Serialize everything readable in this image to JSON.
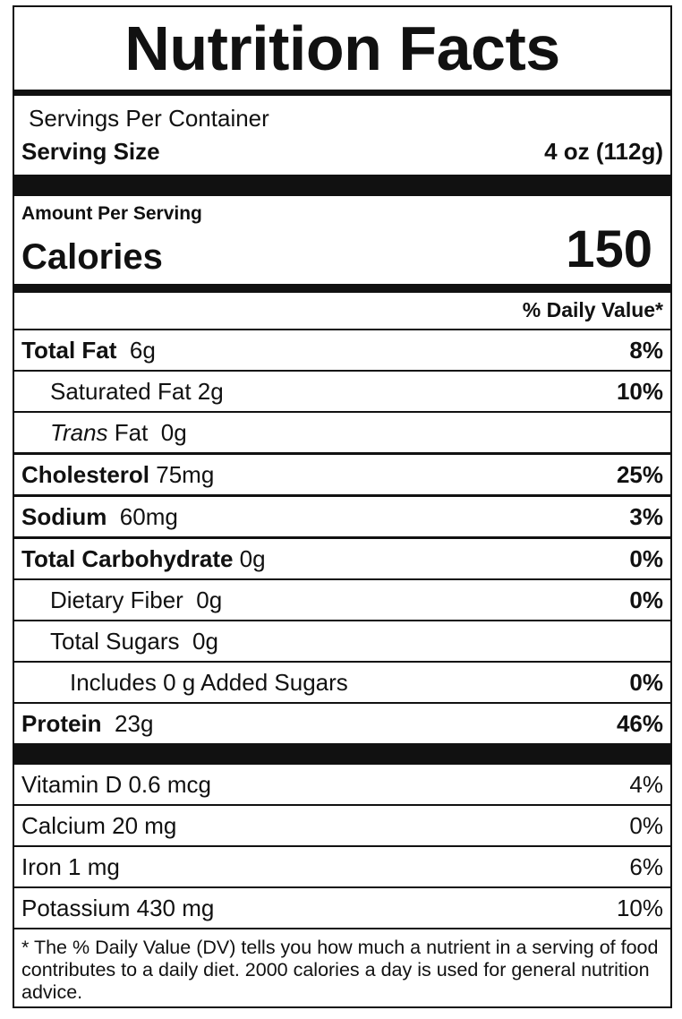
{
  "label": {
    "title": "Nutrition Facts",
    "servings_per_container": "Servings Per Container",
    "serving_size_label": "Serving Size",
    "serving_size_value": "4 oz (112g)",
    "amount_per_serving": "Amount Per Serving",
    "calories_label": "Calories",
    "calories_value": "150",
    "dv_header": "% Daily Value*",
    "nutrients": [
      {
        "name": "Total Fat",
        "amount": "6g",
        "dv": "8%"
      },
      {
        "name": "Saturated Fat",
        "amount": "2g",
        "dv": "10%"
      },
      {
        "name_italic": "Trans",
        "name": "Fat",
        "amount": "0g",
        "dv": ""
      },
      {
        "name": "Cholesterol",
        "amount": "75mg",
        "dv": "25%"
      },
      {
        "name": "Sodium",
        "amount": "60mg",
        "dv": "3%"
      },
      {
        "name": "Total Carbohydrate",
        "amount": "0g",
        "dv": "0%"
      },
      {
        "name": "Dietary Fiber",
        "amount": "0g",
        "dv": "0%"
      },
      {
        "name": "Total Sugars",
        "amount": "0g",
        "dv": ""
      },
      {
        "name": "Includes 0 g Added Sugars",
        "amount": "",
        "dv": "0%"
      },
      {
        "name": "Protein",
        "amount": "23g",
        "dv": "46%"
      }
    ],
    "vitamins": [
      {
        "name": "Vitamin D 0.6 mcg",
        "dv": "4%"
      },
      {
        "name": "Calcium 20 mg",
        "dv": "0%"
      },
      {
        "name": "Iron 1 mg",
        "dv": "6%"
      },
      {
        "name": "Potassium 430 mg",
        "dv": "10%"
      }
    ],
    "footnote": "* The % Daily Value (DV) tells you how much a nutrient in a serving of food contributes to a daily diet. 2000 calories a day is used for general nutrition advice."
  }
}
